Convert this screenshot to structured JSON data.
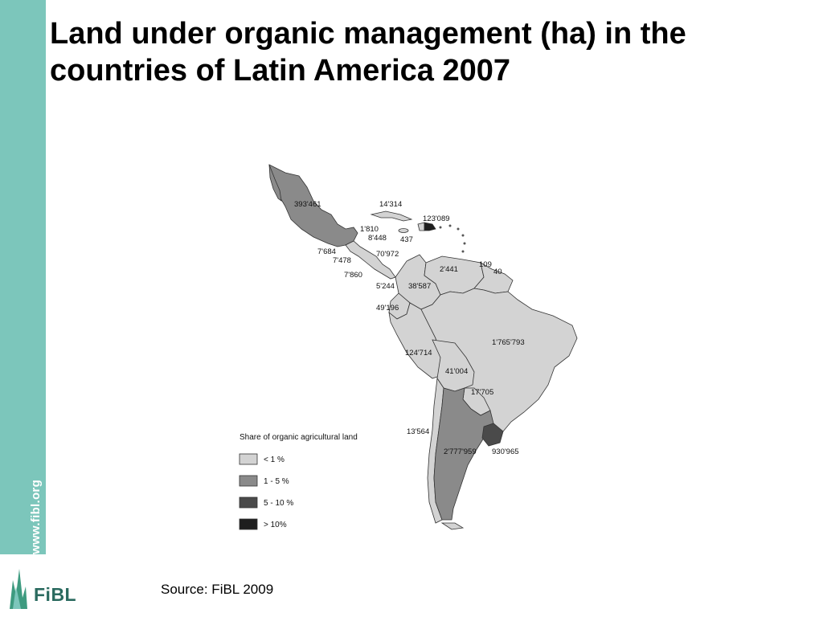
{
  "slide": {
    "title": "Land under organic management (ha) in the countries of Latin America 2007",
    "source": "Source: FiBL 2009",
    "side_url": "www.fibl.org",
    "logo_text": "FiBL"
  },
  "legend": {
    "title": "Share of organic agricultural land",
    "items": [
      {
        "label": "< 1 %",
        "color": "#d3d3d3"
      },
      {
        "label": "1 - 5 %",
        "color": "#8a8a8a"
      },
      {
        "label": "5 - 10 %",
        "color": "#4a4a4a"
      },
      {
        "label": "> 10%",
        "color": "#1e1e1e"
      }
    ]
  },
  "map_labels": {
    "mexico": "393'461",
    "cuba": "14'314",
    "dominican_republic": "123'089",
    "belize": "1'810",
    "guatemala": "8'448",
    "jamaica": "437",
    "el_salvador": "7'684",
    "honduras": "7'478",
    "nicaragua": "70'972",
    "costa_rica": "7'860",
    "panama": "5'244",
    "venezuela": "2'441",
    "guyana": "109",
    "suriname": "40",
    "colombia": "38'587",
    "ecuador": "49'196",
    "brazil": "1'765'793",
    "peru": "124'714",
    "bolivia": "41'004",
    "paraguay": "17'705",
    "chile": "13'564",
    "argentina": "2'777'959",
    "uruguay": "930'965"
  },
  "colors": {
    "sidebar": "#7cc6bb",
    "low": "#d3d3d3",
    "medium": "#8a8a8a",
    "high": "#4a4a4a",
    "very_high": "#1e1e1e"
  }
}
